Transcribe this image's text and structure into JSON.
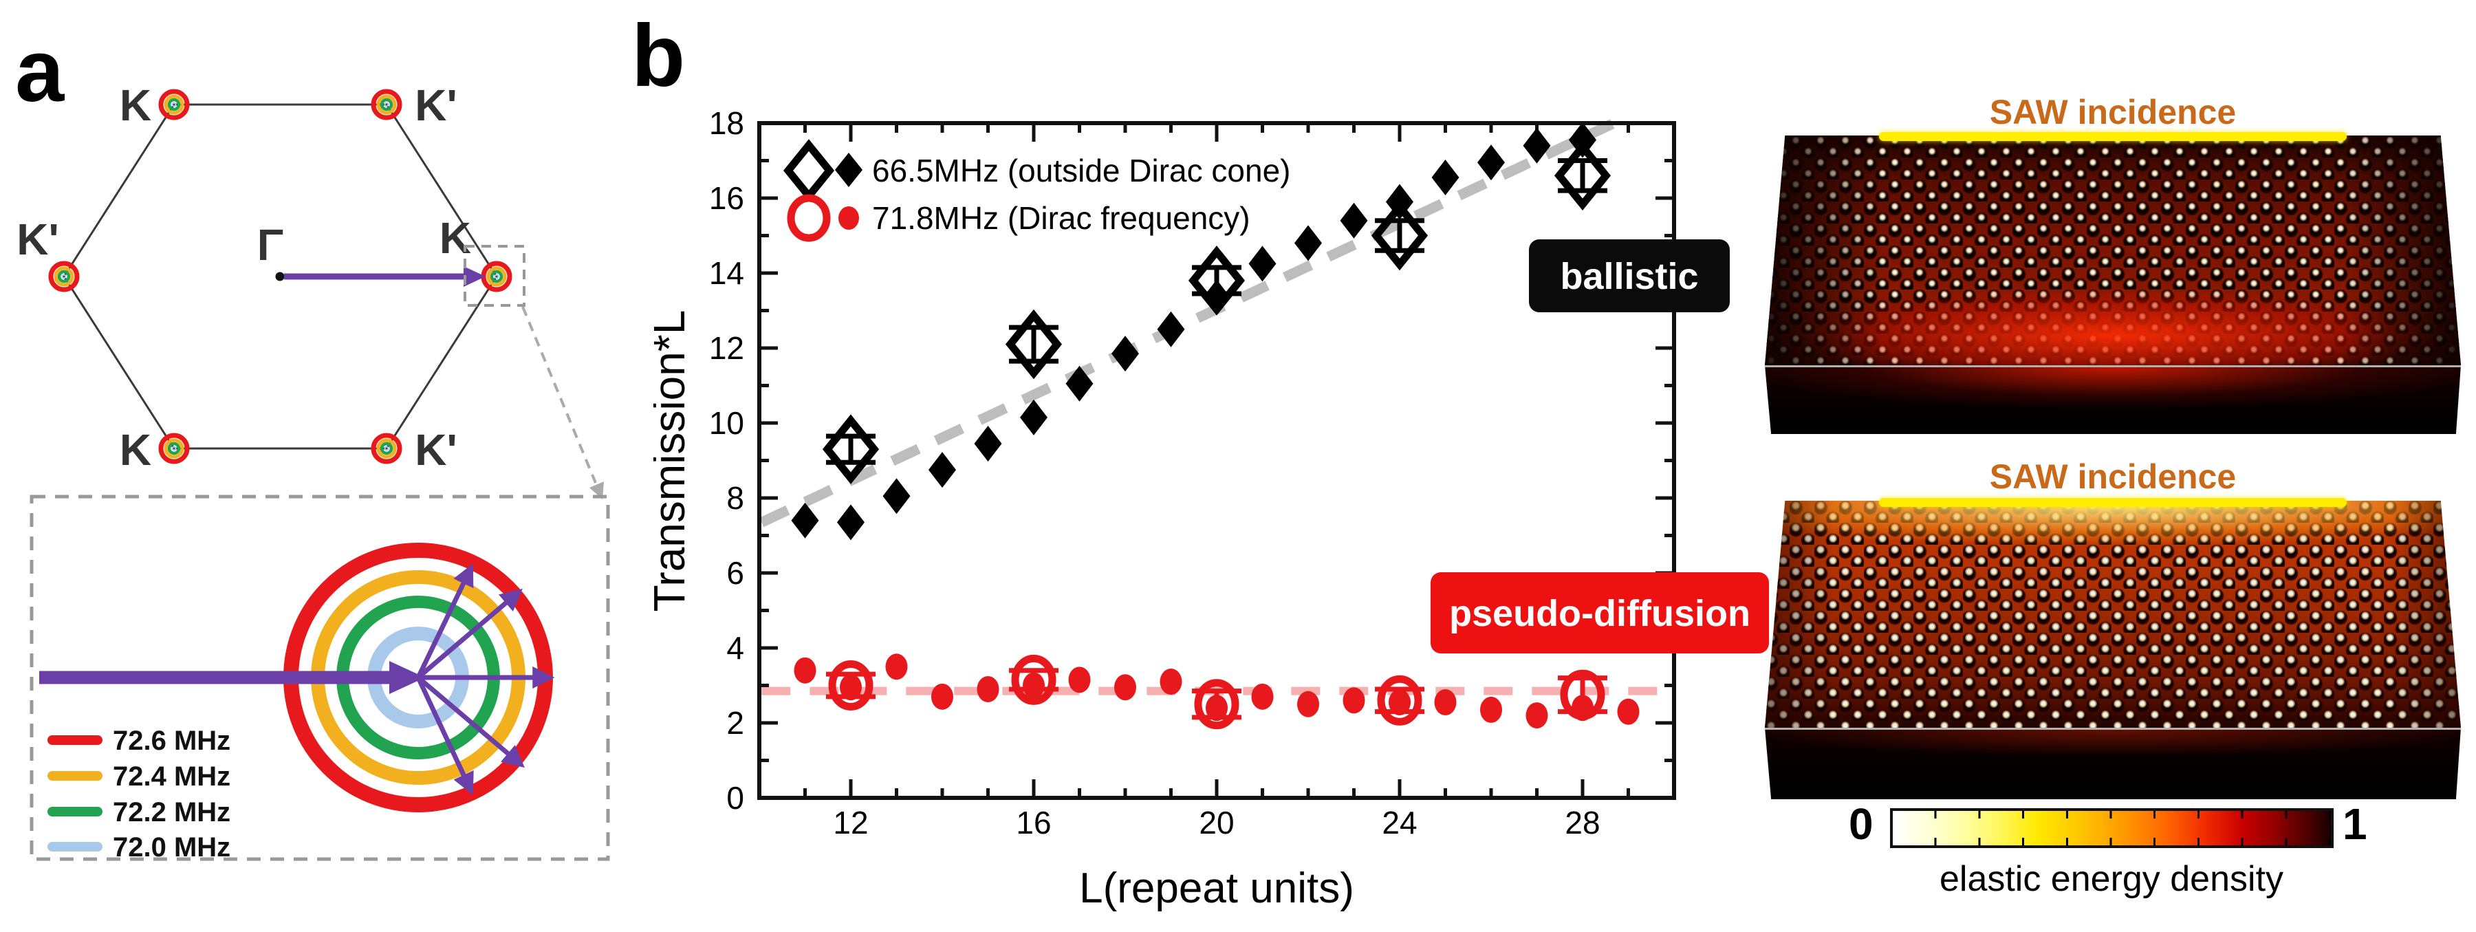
{
  "panel_a": {
    "label": "a",
    "hexagon": {
      "corner_labels": [
        "K",
        "K'",
        "K'",
        "K",
        "K",
        "K'"
      ],
      "gamma_label": "Γ",
      "arrow_color": "#6a3fa8",
      "target_ring_colors": [
        "#e8191c",
        "#f2b01e",
        "#22a34f",
        "#a9c9ea"
      ]
    },
    "inset": {
      "legend": [
        {
          "label": "72.6 MHz",
          "color": "#e8191c"
        },
        {
          "label": "72.4 MHz",
          "color": "#f2b01e"
        },
        {
          "label": "72.2 MHz",
          "color": "#22a34f"
        },
        {
          "label": "72.0 MHz",
          "color": "#a9c9ea"
        }
      ]
    }
  },
  "panel_b": {
    "label": "b",
    "annotations": {
      "ballistic": {
        "text": "ballistic",
        "bg": "#0b0b0b",
        "fg": "#ffffff"
      },
      "pseudo_diffusion": {
        "text": "pseudo-diffusion",
        "bg": "#ee1111",
        "fg": "#ffffff"
      }
    },
    "chart_data": {
      "type": "scatter",
      "xlabel": "L(repeat units)",
      "ylabel": "Transmission*L",
      "xlim": [
        10,
        30
      ],
      "ylim": [
        0,
        18
      ],
      "xticks": [
        12,
        16,
        20,
        24,
        28
      ],
      "yticks": [
        0,
        2,
        4,
        6,
        8,
        10,
        12,
        14,
        16,
        18
      ],
      "legend": [
        {
          "text": "66.5MHz (outside Dirac cone)",
          "color": "#000000"
        },
        {
          "text": "71.8MHz (Dirac frequency)",
          "color": "#e8191c"
        }
      ],
      "series": [
        {
          "name": "66.5MHz simulation",
          "marker": "filled-diamond",
          "color": "#000000",
          "x": [
            11,
            12,
            13,
            14,
            15,
            16,
            17,
            18,
            19,
            20,
            21,
            22,
            23,
            24,
            25,
            26,
            27,
            28
          ],
          "y": [
            7.4,
            7.35,
            8.05,
            8.75,
            9.45,
            10.15,
            11.05,
            11.85,
            12.5,
            13.35,
            14.25,
            14.8,
            15.4,
            15.9,
            16.55,
            16.95,
            17.4,
            17.55
          ]
        },
        {
          "name": "71.8MHz simulation",
          "marker": "filled-circle",
          "color": "#e8191c",
          "x": [
            11,
            12,
            13,
            14,
            15,
            16,
            17,
            18,
            19,
            20,
            21,
            22,
            23,
            24,
            25,
            26,
            27,
            28,
            29
          ],
          "y": [
            3.4,
            2.95,
            3.5,
            2.7,
            2.9,
            3.0,
            3.15,
            2.95,
            3.1,
            2.4,
            2.7,
            2.5,
            2.6,
            2.55,
            2.55,
            2.35,
            2.2,
            2.4,
            2.3
          ]
        },
        {
          "name": "66.5MHz experiment",
          "marker": "open-diamond",
          "color": "#000000",
          "x": [
            12,
            16,
            20,
            24,
            28
          ],
          "y": [
            9.3,
            12.1,
            13.8,
            15.0,
            16.6
          ],
          "yerr": [
            0.35,
            0.45,
            0.35,
            0.4,
            0.4
          ]
        },
        {
          "name": "71.8MHz experiment",
          "marker": "open-circle",
          "color": "#e8191c",
          "x": [
            12,
            16,
            20,
            24,
            28
          ],
          "y": [
            3.0,
            3.15,
            2.5,
            2.6,
            2.75
          ],
          "yerr": [
            0.3,
            0.25,
            0.35,
            0.3,
            0.45
          ]
        }
      ],
      "trend_lines": [
        {
          "name": "ballistic-trend",
          "style": "dashed",
          "color": "#bdbdbd",
          "from": [
            10.05,
            7.35
          ],
          "to": [
            28.65,
            17.98
          ]
        },
        {
          "name": "pseudo-diffusion-trend",
          "style": "dashed",
          "color": "#f6b0b0",
          "from": [
            10.05,
            2.85
          ],
          "to": [
            29.9,
            2.85
          ]
        }
      ],
      "grid": false,
      "legend_position": "top-left"
    }
  },
  "right_panels": {
    "top_sim": {
      "title": "SAW incidence",
      "title_color": "#c96a1a",
      "regime": "ballistic"
    },
    "bottom_sim": {
      "title": "SAW incidence",
      "title_color": "#c96a1a",
      "regime": "pseudo-diffusion"
    },
    "colorbar": {
      "min": "0",
      "max": "1",
      "label": "elastic energy density"
    }
  }
}
